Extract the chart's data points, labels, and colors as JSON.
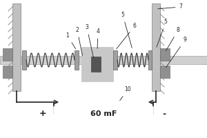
{
  "bg_color": "#ffffff",
  "wall_color": "#c0c0c0",
  "wall_dark": "#a0a0a0",
  "rod_color": "#d0d0d0",
  "rod_border": "#808080",
  "spring_color": "#404040",
  "flange_color": "#a0a0a0",
  "block_fill": "#c0c0c0",
  "block_hatch": "#909090",
  "dark_insert": "#505050",
  "wire_color": "#202020",
  "cap_fill": "#ffffff",
  "label_60mF": "60 mF",
  "plus_label": "+",
  "minus_label": "-"
}
